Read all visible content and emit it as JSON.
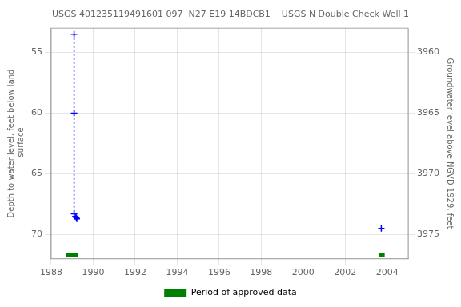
{
  "chart_data": {
    "type": "scatter",
    "title": "USGS 401235119491601 097  N27 E19 14BDCB1    USGS N Double Check Well 1",
    "ylabel": "Depth to water level, feet below land\n surface",
    "y2label": "Groundwater level above NGVD 1929, feet",
    "xlim": [
      1988,
      2005
    ],
    "xticks": [
      1988,
      1990,
      1992,
      1994,
      1996,
      1998,
      2000,
      2002,
      2004
    ],
    "ylim": [
      53,
      72
    ],
    "yticks": [
      55,
      60,
      65,
      70
    ],
    "y2lim": [
      3958,
      3977
    ],
    "y2ticks": [
      3975,
      3970,
      3965,
      3960
    ],
    "grid": true,
    "legend": "bottom",
    "series": [
      {
        "type": "line",
        "color": "#0000ff",
        "line_style": "dotted",
        "x": [
          1989.09,
          1989.09
        ],
        "values": [
          53.5,
          68.3
        ]
      },
      {
        "type": "scatter",
        "color": "#0000ff",
        "marker": "plus",
        "x": [
          1989.09,
          1989.09,
          1989.09,
          1989.15,
          1989.2,
          1989.22,
          2003.72
        ],
        "values": [
          53.5,
          60.0,
          68.3,
          68.5,
          68.6,
          68.7,
          69.5
        ]
      },
      {
        "type": "bar",
        "name": "Period of approved data",
        "color": "#008000",
        "x_start": [
          1988.72,
          2003.62
        ],
        "x_end": [
          1989.28,
          2003.88
        ],
        "y": 71.7,
        "height": 0.35
      }
    ]
  }
}
